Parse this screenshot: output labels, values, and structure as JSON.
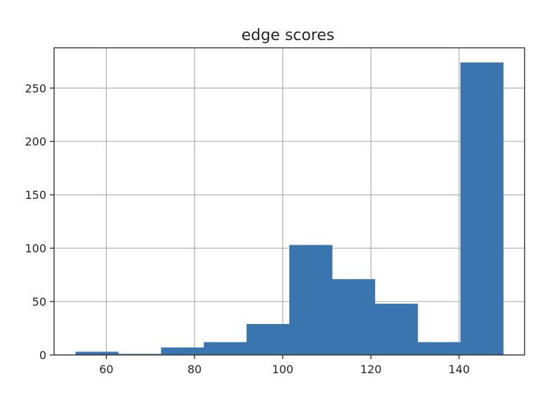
{
  "chart_data": {
    "type": "bar",
    "title": "edge scores",
    "xlabel": "",
    "ylabel": "",
    "bins": [
      {
        "start": 53,
        "end": 62.7,
        "count": 3
      },
      {
        "start": 62.7,
        "end": 72.4,
        "count": 1
      },
      {
        "start": 72.4,
        "end": 82.1,
        "count": 7
      },
      {
        "start": 82.1,
        "end": 91.8,
        "count": 12
      },
      {
        "start": 91.8,
        "end": 101.5,
        "count": 29
      },
      {
        "start": 101.5,
        "end": 111.2,
        "count": 103
      },
      {
        "start": 111.2,
        "end": 120.9,
        "count": 71
      },
      {
        "start": 120.9,
        "end": 130.6,
        "count": 48
      },
      {
        "start": 130.6,
        "end": 140.3,
        "count": 12
      },
      {
        "start": 140.3,
        "end": 150,
        "count": 274
      }
    ],
    "xlim": [
      48.15,
      154.85
    ],
    "ylim": [
      0,
      287.7
    ],
    "xticks": [
      60,
      80,
      100,
      120,
      140
    ],
    "yticks": [
      0,
      50,
      100,
      150,
      200,
      250
    ],
    "grid": true,
    "bar_color": "#3a75af"
  }
}
